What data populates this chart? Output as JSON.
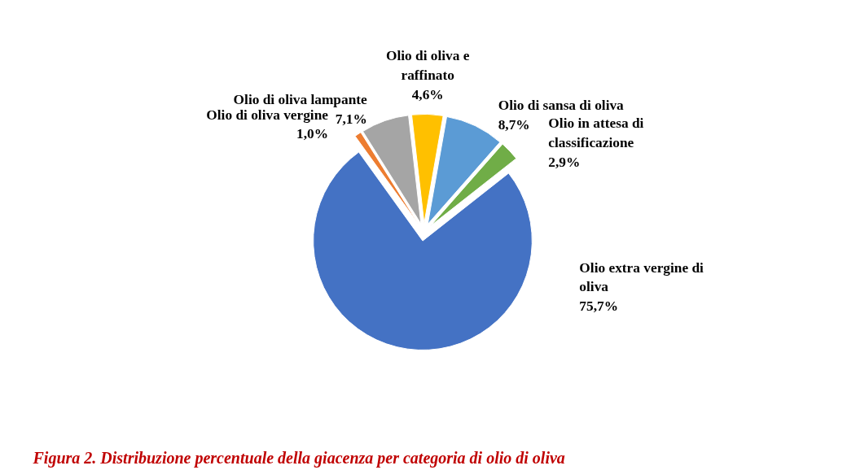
{
  "chart_data": {
    "type": "pie",
    "title": "Figura 2. Distribuzione percentuale della giacenza per categoria di olio di oliva",
    "categories": [
      "Olio di sansa di oliva",
      "Olio in attesa di classificazione",
      "Olio extra vergine di oliva",
      "Olio di oliva vergine",
      "Olio di oliva lampante",
      "Olio di oliva e raffinato"
    ],
    "values": [
      8.7,
      2.9,
      75.7,
      1.0,
      7.1,
      4.6
    ],
    "colors": [
      "#5b9bd5",
      "#70ad47",
      "#4472c4",
      "#ed7d31",
      "#a5a5a5",
      "#ffc000"
    ],
    "value_labels": [
      "8,7%",
      "2,9%",
      "75,7%",
      "1,0%",
      "7,1%",
      "4,6%"
    ]
  }
}
